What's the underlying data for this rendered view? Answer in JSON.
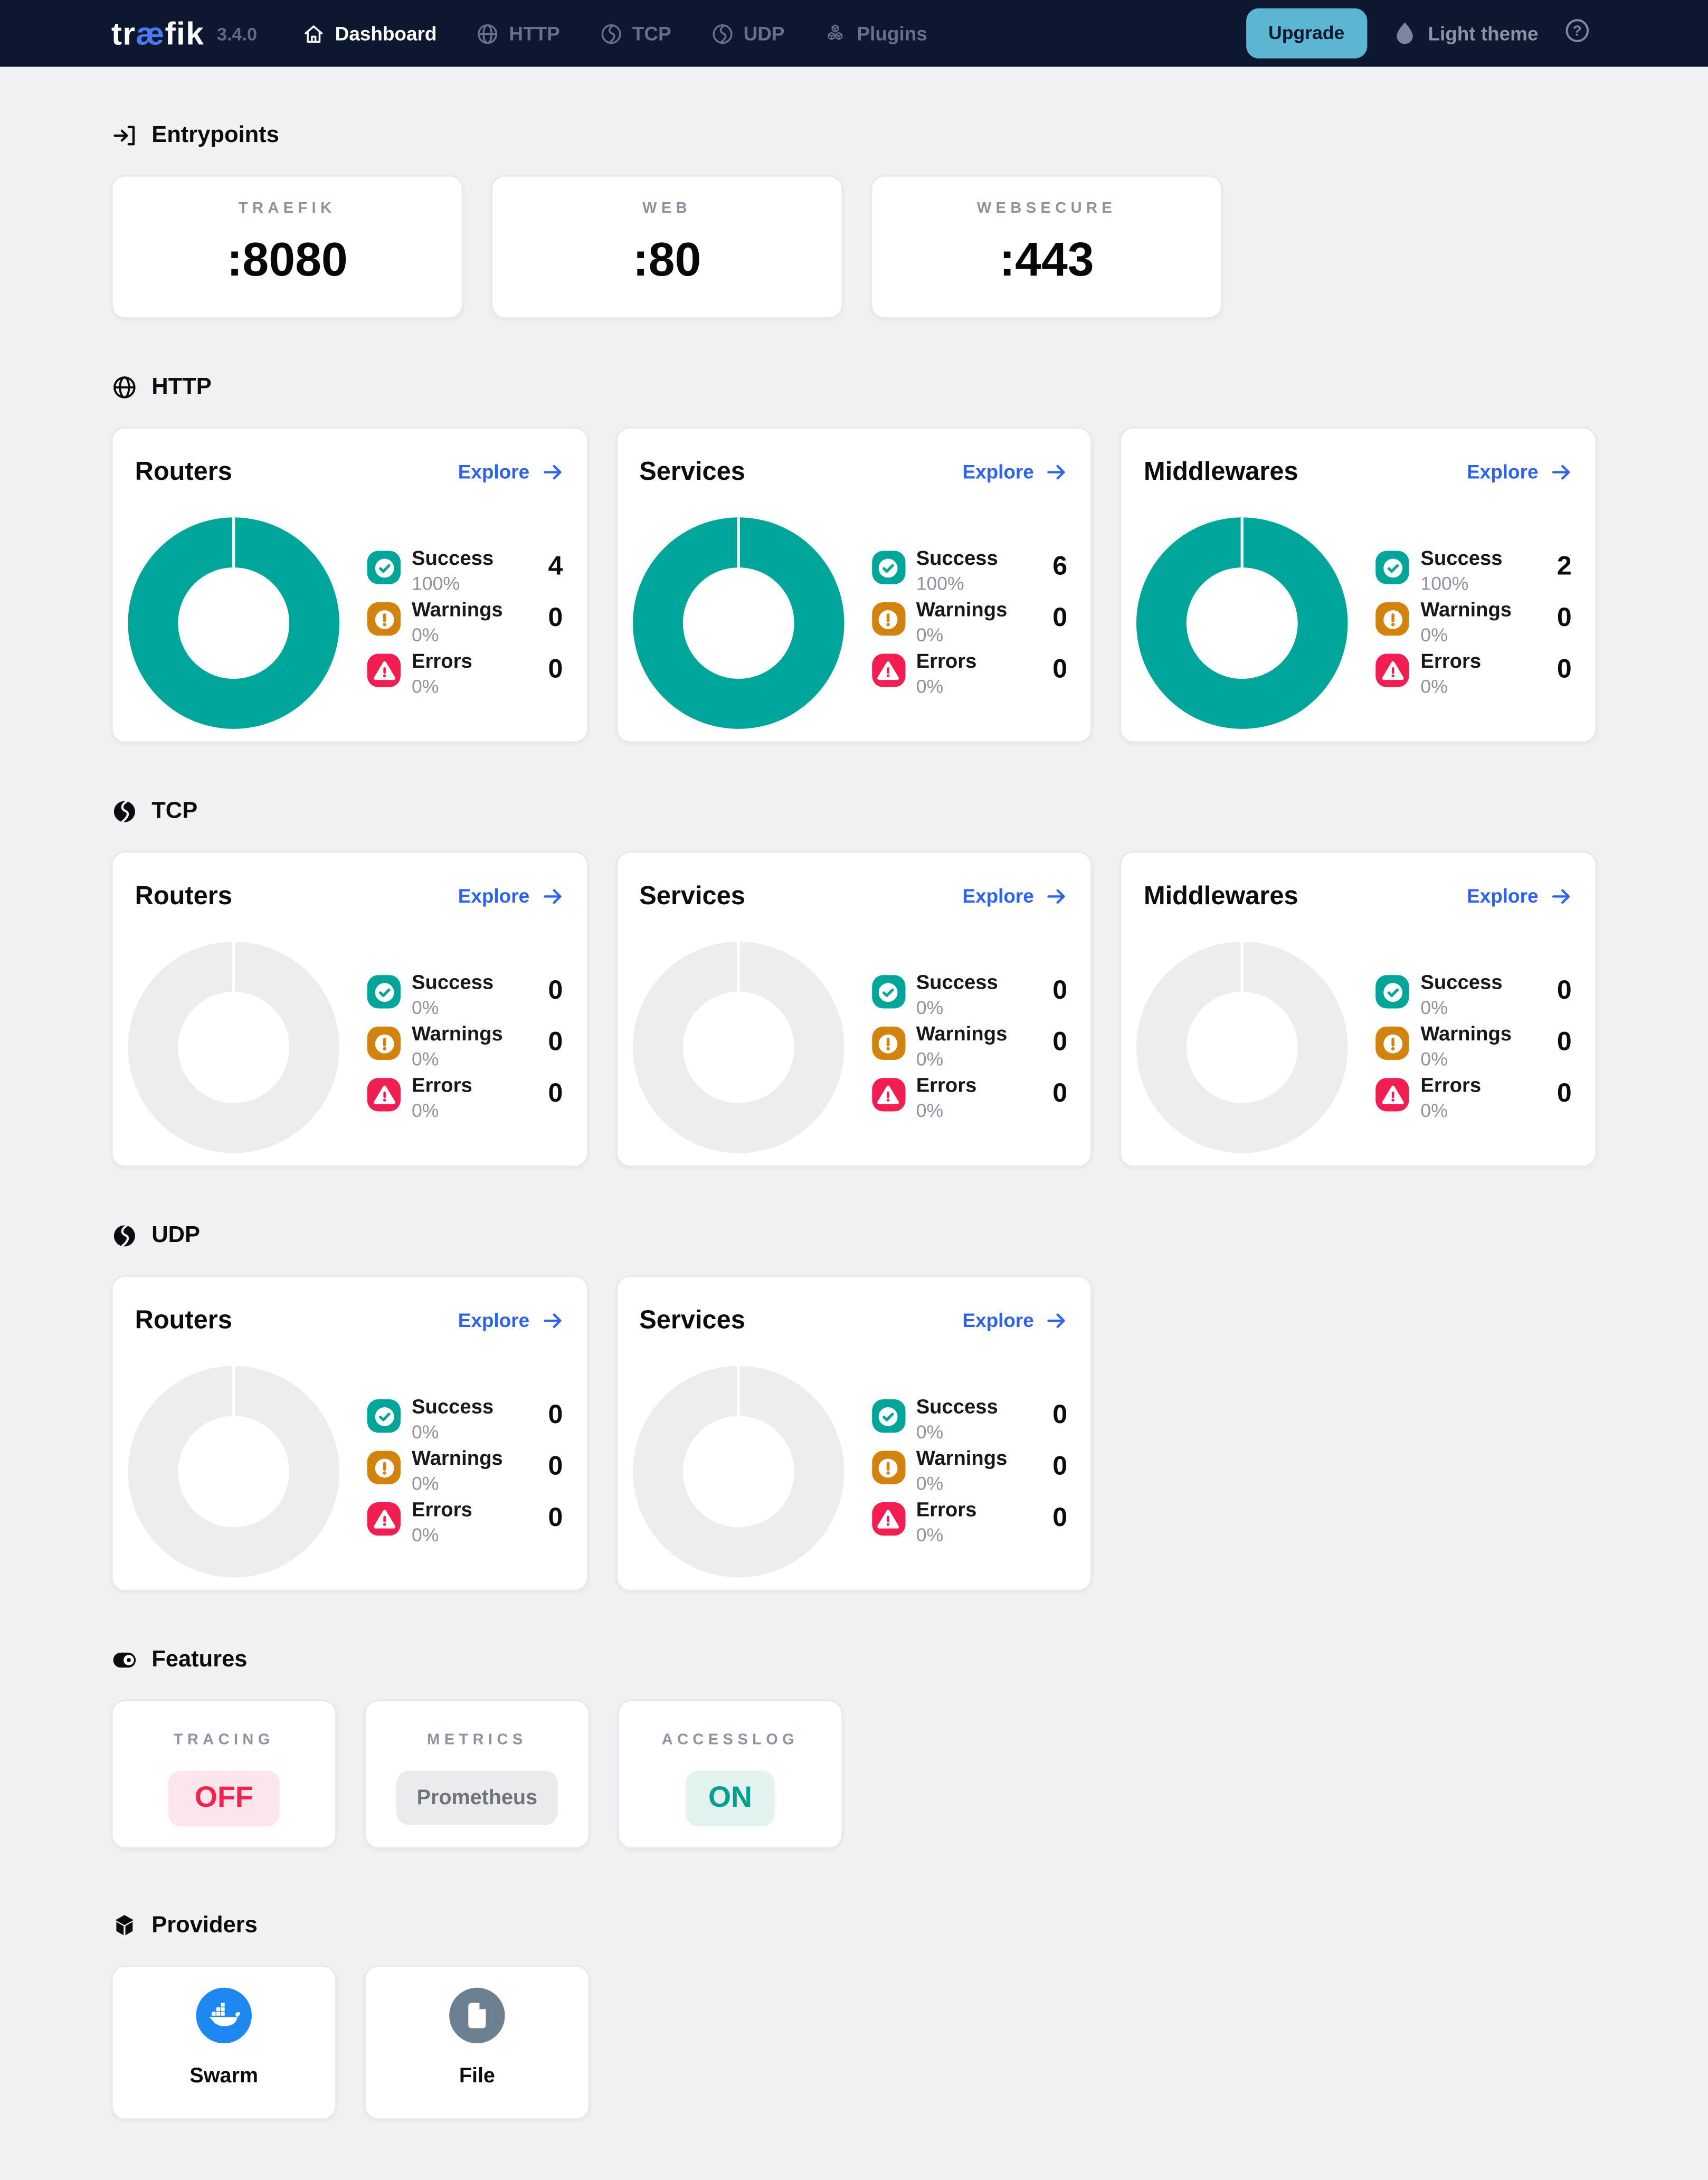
{
  "header": {
    "logo": {
      "pre": "tr",
      "ae": "æ",
      "post": "fik"
    },
    "version": "3.4.0",
    "nav": [
      {
        "label": "Dashboard",
        "active": true
      },
      {
        "label": "HTTP",
        "active": false
      },
      {
        "label": "TCP",
        "active": false
      },
      {
        "label": "UDP",
        "active": false
      },
      {
        "label": "Plugins",
        "active": false
      }
    ],
    "upgrade_label": "Upgrade",
    "theme_toggle_label": "Light theme"
  },
  "sections": {
    "entrypoints": {
      "title": "Entrypoints",
      "cards": [
        {
          "label": "TRAEFIK",
          "port": ":8080"
        },
        {
          "label": "WEB",
          "port": ":80"
        },
        {
          "label": "WEBSECURE",
          "port": ":443"
        }
      ]
    },
    "http": {
      "title": "HTTP",
      "cards": [
        {
          "title": "Routers",
          "explore_label": "Explore",
          "donut_filled": true,
          "rows": [
            {
              "label": "Success",
              "pct": "100%",
              "count": "4"
            },
            {
              "label": "Warnings",
              "pct": "0%",
              "count": "0"
            },
            {
              "label": "Errors",
              "pct": "0%",
              "count": "0"
            }
          ]
        },
        {
          "title": "Services",
          "explore_label": "Explore",
          "donut_filled": true,
          "rows": [
            {
              "label": "Success",
              "pct": "100%",
              "count": "6"
            },
            {
              "label": "Warnings",
              "pct": "0%",
              "count": "0"
            },
            {
              "label": "Errors",
              "pct": "0%",
              "count": "0"
            }
          ]
        },
        {
          "title": "Middlewares",
          "explore_label": "Explore",
          "donut_filled": true,
          "rows": [
            {
              "label": "Success",
              "pct": "100%",
              "count": "2"
            },
            {
              "label": "Warnings",
              "pct": "0%",
              "count": "0"
            },
            {
              "label": "Errors",
              "pct": "0%",
              "count": "0"
            }
          ]
        }
      ]
    },
    "tcp": {
      "title": "TCP",
      "cards": [
        {
          "title": "Routers",
          "explore_label": "Explore",
          "donut_filled": false,
          "rows": [
            {
              "label": "Success",
              "pct": "0%",
              "count": "0"
            },
            {
              "label": "Warnings",
              "pct": "0%",
              "count": "0"
            },
            {
              "label": "Errors",
              "pct": "0%",
              "count": "0"
            }
          ]
        },
        {
          "title": "Services",
          "explore_label": "Explore",
          "donut_filled": false,
          "rows": [
            {
              "label": "Success",
              "pct": "0%",
              "count": "0"
            },
            {
              "label": "Warnings",
              "pct": "0%",
              "count": "0"
            },
            {
              "label": "Errors",
              "pct": "0%",
              "count": "0"
            }
          ]
        },
        {
          "title": "Middlewares",
          "explore_label": "Explore",
          "donut_filled": false,
          "rows": [
            {
              "label": "Success",
              "pct": "0%",
              "count": "0"
            },
            {
              "label": "Warnings",
              "pct": "0%",
              "count": "0"
            },
            {
              "label": "Errors",
              "pct": "0%",
              "count": "0"
            }
          ]
        }
      ]
    },
    "udp": {
      "title": "UDP",
      "cards": [
        {
          "title": "Routers",
          "explore_label": "Explore",
          "donut_filled": false,
          "rows": [
            {
              "label": "Success",
              "pct": "0%",
              "count": "0"
            },
            {
              "label": "Warnings",
              "pct": "0%",
              "count": "0"
            },
            {
              "label": "Errors",
              "pct": "0%",
              "count": "0"
            }
          ]
        },
        {
          "title": "Services",
          "explore_label": "Explore",
          "donut_filled": false,
          "rows": [
            {
              "label": "Success",
              "pct": "0%",
              "count": "0"
            },
            {
              "label": "Warnings",
              "pct": "0%",
              "count": "0"
            },
            {
              "label": "Errors",
              "pct": "0%",
              "count": "0"
            }
          ]
        }
      ]
    },
    "features": {
      "title": "Features",
      "cards": [
        {
          "label": "TRACING",
          "value": "OFF",
          "state": "off"
        },
        {
          "label": "METRICS",
          "value": "Prometheus",
          "state": "neutral"
        },
        {
          "label": "ACCESSLOG",
          "value": "ON",
          "state": "on"
        }
      ]
    },
    "providers": {
      "title": "Providers",
      "cards": [
        {
          "label": "Swarm",
          "icon": "docker-icon"
        },
        {
          "label": "File",
          "icon": "file-icon"
        }
      ]
    }
  },
  "colors": {
    "header_bg": "#0d182e",
    "page_bg": "#f0f1f3",
    "success_teal": "#00a59a",
    "warning_amber": "#d1830d",
    "error_red": "#f21d50",
    "link_blue": "#2b63f0",
    "upgrade_button": "#5cb5d1",
    "docker_blue": "#1e88f2",
    "file_slate": "#6b8090",
    "empty_donut": "#ededf0"
  }
}
